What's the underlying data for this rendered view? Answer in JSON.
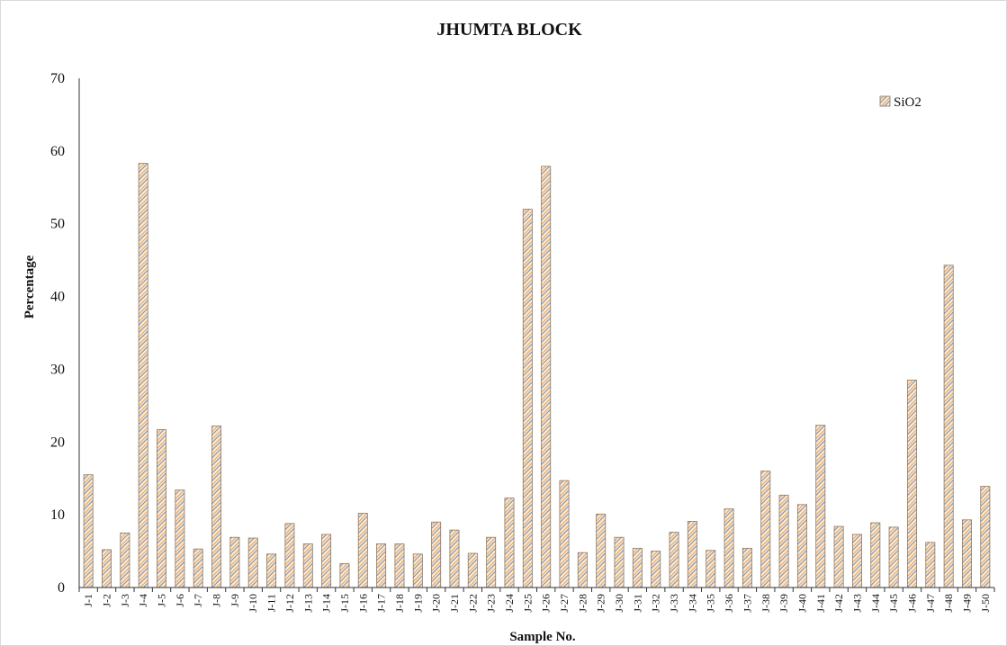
{
  "chart_data": {
    "type": "bar",
    "title": "JHUMTA BLOCK",
    "xlabel": "Sample No.",
    "ylabel": "Percentage",
    "ylim": [
      0,
      70
    ],
    "yticks": [
      0,
      10,
      20,
      30,
      40,
      50,
      60,
      70
    ],
    "grid": false,
    "legend_position": "top-right",
    "categories": [
      "J-1",
      "J-2",
      "J-3",
      "J-4",
      "J-5",
      "J-6",
      "J-7",
      "J-8",
      "J-9",
      "J-10",
      "J-11",
      "J-12",
      "J-13",
      "J-14",
      "J-15",
      "J-16",
      "J-17",
      "J-18",
      "J-19",
      "J-20",
      "J-21",
      "J-22",
      "J-23",
      "J-24",
      "J-25",
      "J-26",
      "J-27",
      "J-28",
      "J-29",
      "J-30",
      "J-31",
      "J-32",
      "J-33",
      "J-34",
      "J-35",
      "J-36",
      "J-37",
      "J-38",
      "J-39",
      "J-40",
      "J-41",
      "J-42",
      "J-43",
      "J-44",
      "J-45",
      "J-46",
      "J-47",
      "J-48",
      "J-49",
      "J-50"
    ],
    "series": [
      {
        "name": "SiO2",
        "color_fill": "#fde6c8",
        "color_hatch": "#e8a15c",
        "color_hatch2": "#6b8fc4",
        "values": [
          15.5,
          5.2,
          7.5,
          58.3,
          21.7,
          13.4,
          5.3,
          22.2,
          6.9,
          6.8,
          4.6,
          8.8,
          6.0,
          7.3,
          3.3,
          10.2,
          6.0,
          6.0,
          4.6,
          9.0,
          7.9,
          4.7,
          6.9,
          12.3,
          52.0,
          57.9,
          14.7,
          4.8,
          10.1,
          6.9,
          5.4,
          5.0,
          7.6,
          9.1,
          5.1,
          10.8,
          5.4,
          16.0,
          12.7,
          11.4,
          22.3,
          8.4,
          7.3,
          8.9,
          8.3,
          28.5,
          6.2,
          44.3,
          9.3,
          13.9
        ]
      }
    ]
  }
}
